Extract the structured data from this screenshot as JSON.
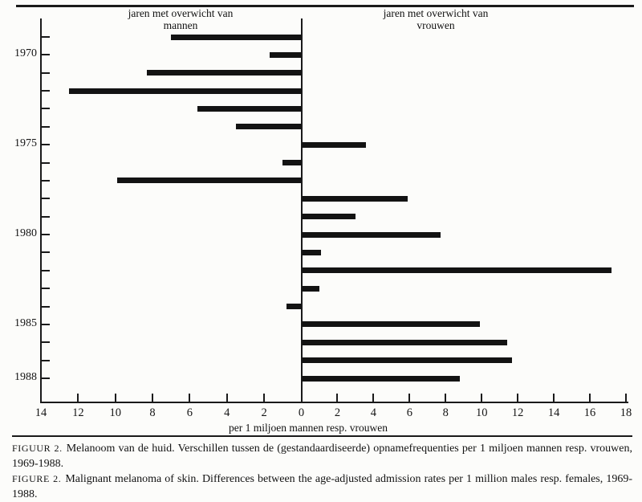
{
  "chart_data": {
    "type": "bar",
    "orientation": "horizontal-diverging",
    "title_left": [
      "jaren met overwicht van",
      "mannen"
    ],
    "title_right": [
      "jaren met overwicht van",
      "vrouwen"
    ],
    "xlabel": "per 1 miljoen mannen resp. vrouwen",
    "categories": [
      1969,
      1970,
      1971,
      1972,
      1973,
      1974,
      1975,
      1976,
      1977,
      1978,
      1979,
      1980,
      1981,
      1982,
      1983,
      1984,
      1985,
      1986,
      1987,
      1988
    ],
    "values": [
      -7.0,
      -1.7,
      -8.3,
      -12.5,
      -5.6,
      -3.5,
      3.6,
      -1.0,
      -9.9,
      5.9,
      3.0,
      7.7,
      1.1,
      17.2,
      1.0,
      -0.8,
      9.9,
      11.4,
      11.7,
      8.8
    ],
    "negative_side_meaning": "jaren met overwicht van mannen (bars to the left)",
    "positive_side_meaning": "jaren met overwicht van vrouwen (bars to the right)",
    "xlim": [
      -14,
      18
    ],
    "x_tick_step": 2,
    "x_tick_labels_absolute": true,
    "y_labeled_categories": [
      1970,
      1975,
      1980,
      1985,
      1988
    ],
    "grid": false,
    "legend": "none",
    "bar_color": "#131313"
  },
  "caption": {
    "paragraphs": [
      {
        "label": "FIGUUR 2.",
        "text": "Melanoom van de huid. Verschillen tussen de (gestandaardiseerde) opnamefrequenties per 1 miljoen mannen resp. vrouwen, 1969-1988."
      },
      {
        "label": "FIGURE 2.",
        "text": "Malignant melanoma of skin. Differences between the age-adjusted admission rates per 1 million males resp. females, 1969-1988."
      }
    ]
  }
}
